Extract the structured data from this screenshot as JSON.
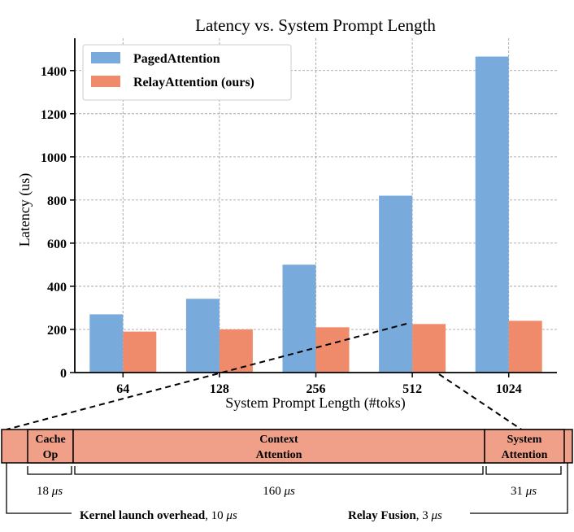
{
  "chart_data": {
    "type": "bar",
    "title": "Latency vs. System Prompt Length",
    "xlabel": "System Prompt Length (#toks)",
    "ylabel": "Latency (us)",
    "ylim": [
      0,
      1550
    ],
    "yticks": [
      0,
      200,
      400,
      600,
      800,
      1000,
      1200,
      1400
    ],
    "grid": true,
    "legend_position": "top-left",
    "categories": [
      "64",
      "128",
      "256",
      "512",
      "1024"
    ],
    "series": [
      {
        "name": "PagedAttention",
        "color": "#78aadc",
        "values": [
          270,
          342,
          500,
          820,
          1465
        ]
      },
      {
        "name": "RelayAttention (ours)",
        "color": "#ef8b6a",
        "values": [
          190,
          200,
          210,
          225,
          240
        ]
      }
    ]
  },
  "breakdown": {
    "color": "#f0a088",
    "segments": [
      {
        "label_line1": "Cache",
        "label_line2": "Op",
        "time_value": "18",
        "time_unit": "μs"
      },
      {
        "label_line1": "Context",
        "label_line2": "Attention",
        "time_value": "160",
        "time_unit": "μs"
      },
      {
        "label_line1": "System",
        "label_line2": "Attention",
        "time_value": "31",
        "time_unit": "μs"
      }
    ],
    "overheads": [
      {
        "label": "Kernel launch overhead",
        "value": ", 10",
        "unit": "μs"
      },
      {
        "label": "Relay Fusion",
        "value": ", 3",
        "unit": "μs"
      }
    ]
  }
}
